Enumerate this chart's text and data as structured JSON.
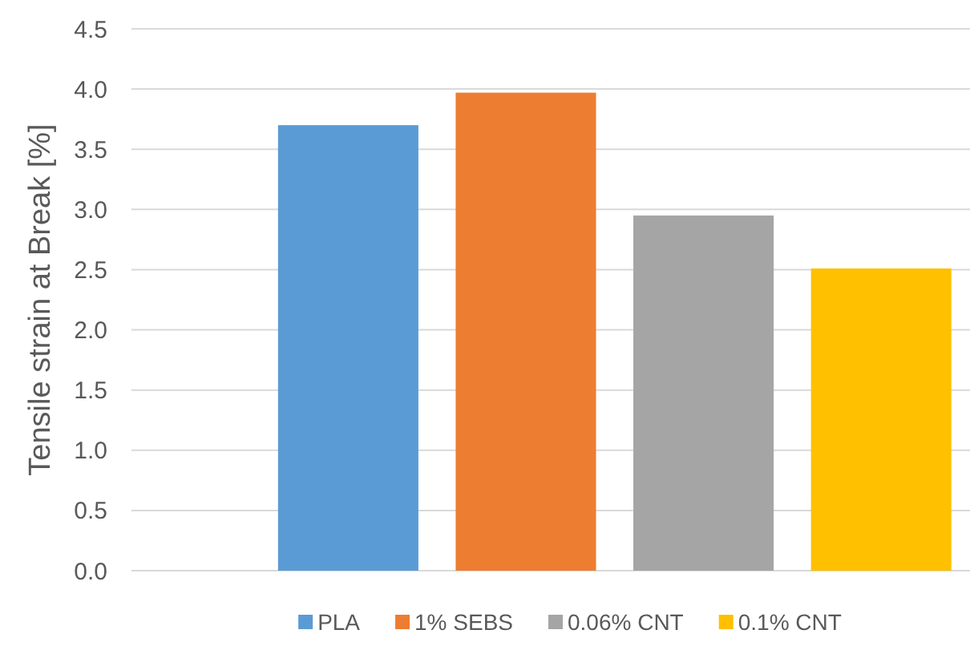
{
  "chart_data": {
    "type": "bar",
    "ylabel": "Tensile strain at Break [%]",
    "categories": [
      null
    ],
    "series": [
      {
        "name": "PLA",
        "color": "#5b9bd5",
        "values": [
          3.7
        ]
      },
      {
        "name": "1% SEBS",
        "color": "#ed7d31",
        "values": [
          3.97
        ]
      },
      {
        "name": "0.06% CNT",
        "color": "#a5a5a5",
        "values": [
          2.95
        ]
      },
      {
        "name": "0.1% CNT",
        "color": "#ffc000",
        "values": [
          2.51
        ]
      }
    ],
    "ylim": [
      0,
      4.5
    ],
    "yticks": [
      {
        "value": 0,
        "label": "0.0"
      },
      0.5,
      {
        "value": 1,
        "label": "1.0"
      },
      1.5,
      {
        "value": 2,
        "label": "2.0"
      },
      2.5,
      {
        "value": 3,
        "label": "3.0"
      },
      3.5,
      {
        "value": 4,
        "label": "4.0"
      },
      4.5
    ],
    "grid": "y",
    "legend": "bottom"
  }
}
